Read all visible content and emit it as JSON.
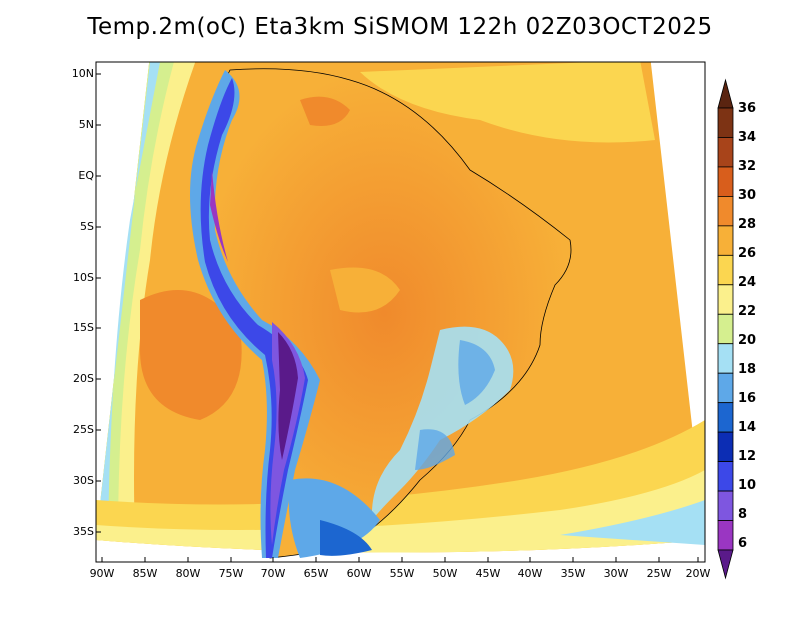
{
  "title": "Temp.2m(oC) Eta3km SiSMOM 122h 02Z03OCT2025",
  "lat_ticks": [
    "10N",
    "5N",
    "EQ",
    "5S",
    "10S",
    "15S",
    "20S",
    "25S",
    "30S",
    "35S"
  ],
  "lon_ticks": [
    "90W",
    "85W",
    "80W",
    "75W",
    "70W",
    "65W",
    "60W",
    "55W",
    "50W",
    "45W",
    "40W",
    "35W",
    "30W",
    "25W",
    "20W"
  ],
  "colorbar": {
    "labels": [
      "36",
      "34",
      "32",
      "30",
      "28",
      "26",
      "24",
      "22",
      "20",
      "18",
      "16",
      "14",
      "12",
      "10",
      "8",
      "6"
    ],
    "colors": [
      "#5a2410",
      "#7d3314",
      "#a8441a",
      "#d85e1c",
      "#f08a2c",
      "#f7b038",
      "#fbd650",
      "#fbf08c",
      "#d5ef8f",
      "#a5e0f4",
      "#5ea8e8",
      "#1c66d0",
      "#0c2db4",
      "#3c48e8",
      "#7e56e0",
      "#9a36c2",
      "#5a1a8a"
    ]
  }
}
